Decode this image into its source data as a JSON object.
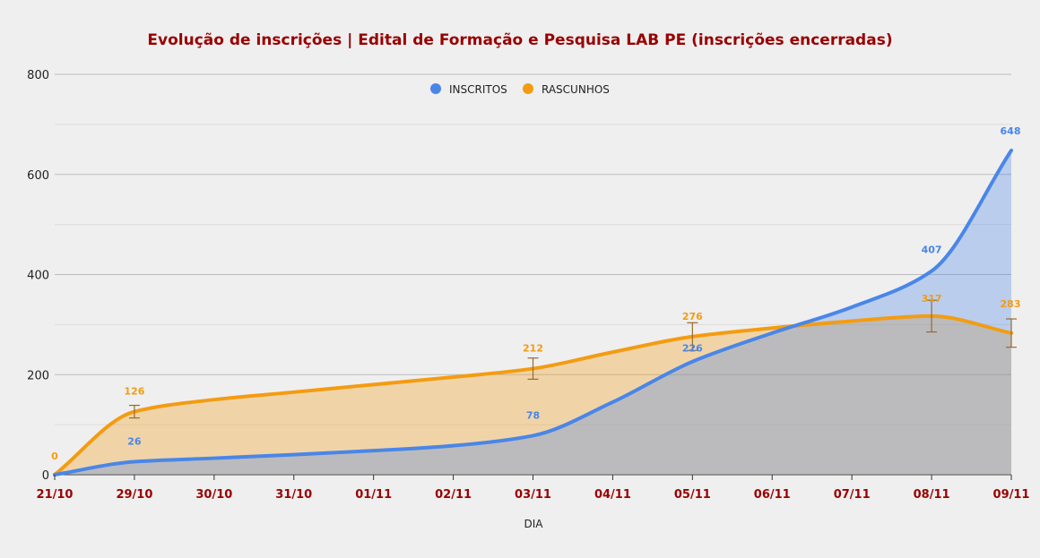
{
  "chart_data": {
    "type": "area",
    "title": "Evolução de inscrições | Edital de Formação e Pesquisa LAB PE (inscrições encerradas)",
    "xlabel": "DIA",
    "ylabel": "",
    "categories": [
      "21/10",
      "29/10",
      "30/10",
      "31/10",
      "01/11",
      "02/11",
      "03/11",
      "04/11",
      "05/11",
      "06/11",
      "07/11",
      "08/11",
      "09/11"
    ],
    "ylim": [
      0,
      800
    ],
    "yticks": [
      0,
      200,
      400,
      600,
      800
    ],
    "grid": true,
    "legend_position": "top",
    "series": [
      {
        "name": "INSCRITOS",
        "color": "#4a86e8",
        "values": [
          0,
          26,
          33,
          40,
          48,
          58,
          78,
          145,
          226,
          283,
          335,
          407,
          648
        ],
        "labels": {
          "0": "",
          "1": "26",
          "6": "78",
          "8": "226",
          "11": "407",
          "12": "648"
        }
      },
      {
        "name": "RASCUNHOS",
        "color": "#f39c12",
        "values": [
          0,
          126,
          150,
          165,
          180,
          195,
          212,
          245,
          276,
          293,
          307,
          317,
          283
        ],
        "labels": {
          "0": "0",
          "1": "126",
          "6": "212",
          "8": "276",
          "11": "317",
          "12": "283"
        }
      }
    ],
    "colors": {
      "title": "#990000",
      "x_tick": "#990000",
      "grid": "#bdbdbd",
      "minor_grid": "#dcdcdc",
      "error_bar": "#9a6a2a"
    }
  }
}
